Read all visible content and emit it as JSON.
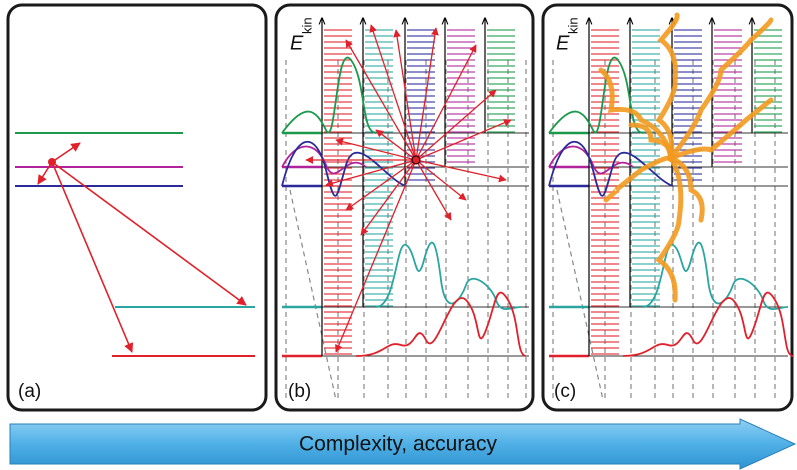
{
  "panels": [
    {
      "label": "(a)"
    },
    {
      "label": "(b)",
      "axis_symbol": "E",
      "axis_subscript": "kin"
    },
    {
      "label": "(c)",
      "axis_symbol": "E",
      "axis_subscript": "kin"
    }
  ],
  "arrow": {
    "label": "Complexity, accuracy"
  }
}
